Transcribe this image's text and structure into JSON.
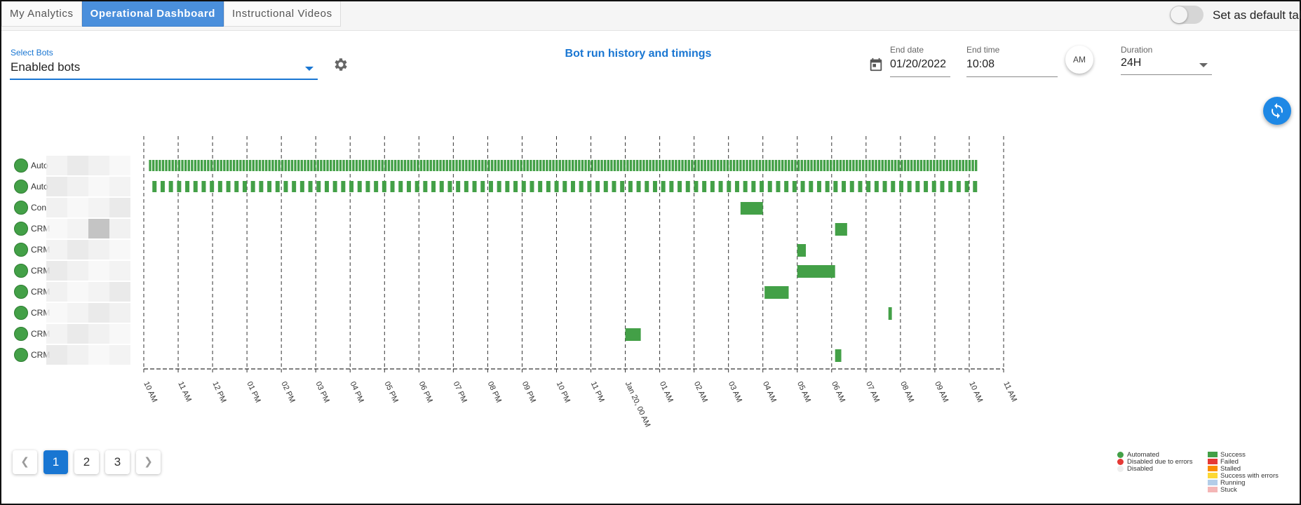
{
  "tabs": [
    {
      "label": "My Analytics",
      "active": false
    },
    {
      "label": "Operational Dashboard",
      "active": true
    },
    {
      "label": "Instructional Videos",
      "active": false
    }
  ],
  "default_tab_toggle": {
    "label": "Set as default tab",
    "on": false
  },
  "select_bots": {
    "label": "Select Bots",
    "value": "Enabled bots"
  },
  "chart_title": "Bot run history and timings",
  "end_date": {
    "label": "End date",
    "value": "01/20/2022"
  },
  "end_time": {
    "label": "End time",
    "value": "10:08"
  },
  "am_pm": "AM",
  "duration": {
    "label": "Duration",
    "value": "24H"
  },
  "icons": {
    "settings": "gear-icon",
    "calendar": "calendar-icon",
    "refresh": "refresh-icon",
    "prev": "chevron-left-icon",
    "next": "chevron-right-icon"
  },
  "colors": {
    "accent": "#1976d2",
    "success": "#43a047",
    "failed": "#e53935",
    "stalled": "#fb8c00",
    "success_with_errors": "#fdd835",
    "running": "#b3cde8",
    "stuck": "#f4b6b6",
    "disabled": "#eeeeee"
  },
  "chart_data": {
    "type": "timeline",
    "x_ticks": [
      "10 AM",
      "11 AM",
      "12 PM",
      "01 PM",
      "02 PM",
      "03 PM",
      "04 PM",
      "05 PM",
      "06 PM",
      "07 PM",
      "08 PM",
      "09 PM",
      "10 PM",
      "11 PM",
      "Jan 20, 00 AM",
      "01 AM",
      "02 AM",
      "03 AM",
      "04 AM",
      "05 AM",
      "06 AM",
      "07 AM",
      "08 AM",
      "09 AM",
      "10 AM",
      "11 AM"
    ],
    "x_range_hours": [
      0,
      25
    ],
    "rows": [
      {
        "label": "Auto",
        "status": "Automated",
        "runs": [
          {
            "start": 0.15,
            "end": 24.2,
            "outcome": "Success",
            "pattern": "dense"
          }
        ]
      },
      {
        "label": "Auto",
        "status": "Automated",
        "runs": [
          {
            "start": 0.25,
            "end": 24.2,
            "outcome": "Success",
            "pattern": "periodic"
          }
        ]
      },
      {
        "label": "Con",
        "status": "Automated",
        "runs": [
          {
            "start": 17.35,
            "end": 18.0,
            "outcome": "Success"
          }
        ]
      },
      {
        "label": "CRM",
        "status": "Automated",
        "runs": [
          {
            "start": 20.1,
            "end": 20.45,
            "outcome": "Success"
          }
        ]
      },
      {
        "label": "CRM",
        "status": "Automated",
        "runs": [
          {
            "start": 19.0,
            "end": 19.25,
            "outcome": "Success"
          }
        ]
      },
      {
        "label": "CRM",
        "status": "Automated",
        "runs": [
          {
            "start": 19.0,
            "end": 20.1,
            "outcome": "Success"
          }
        ]
      },
      {
        "label": "CRM",
        "status": "Automated",
        "runs": [
          {
            "start": 18.05,
            "end": 18.75,
            "outcome": "Success"
          }
        ]
      },
      {
        "label": "CRM",
        "status": "Automated",
        "runs": [
          {
            "start": 21.65,
            "end": 21.75,
            "outcome": "Success"
          }
        ]
      },
      {
        "label": "CRM",
        "status": "Automated",
        "runs": [
          {
            "start": 14.0,
            "end": 14.45,
            "outcome": "Success"
          }
        ]
      },
      {
        "label": "CRM",
        "status": "Automated",
        "runs": [
          {
            "start": 20.1,
            "end": 20.28,
            "outcome": "Success"
          }
        ]
      }
    ]
  },
  "pagination": {
    "pages": [
      "1",
      "2",
      "3"
    ],
    "current": "1"
  },
  "legend_status": [
    {
      "label": "Automated",
      "color": "#43a047"
    },
    {
      "label": "Disabled due to errors",
      "color": "#e53935"
    },
    {
      "label": "Disabled",
      "color": "#eeeeee"
    }
  ],
  "legend_outcomes": [
    {
      "label": "Success",
      "color": "#43a047"
    },
    {
      "label": "Failed",
      "color": "#e53935"
    },
    {
      "label": "Stalled",
      "color": "#fb8c00"
    },
    {
      "label": "Success with errors",
      "color": "#fdd835"
    },
    {
      "label": "Running",
      "color": "#b3cde8"
    },
    {
      "label": "Stuck",
      "color": "#f4b6b6"
    }
  ]
}
